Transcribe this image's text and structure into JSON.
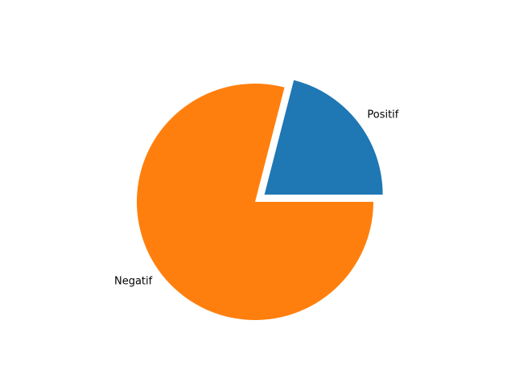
{
  "chart_data": {
    "type": "pie",
    "title": "",
    "slices": [
      {
        "label": "Positif",
        "value": 21,
        "color": "#1f77b4",
        "exploded": true
      },
      {
        "label": "Negatif",
        "value": 79,
        "color": "#ff7f0e",
        "exploded": false
      }
    ],
    "start_angle_deg": 0,
    "direction": "counterclockwise",
    "legend": "none",
    "grid": false
  }
}
